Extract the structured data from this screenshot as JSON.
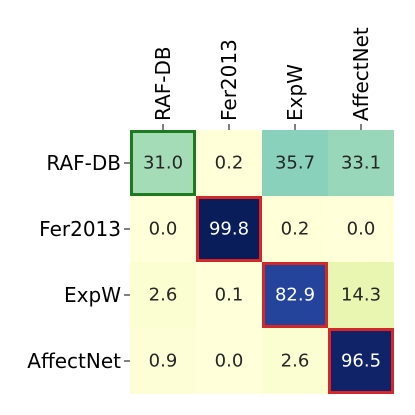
{
  "chart_data": {
    "type": "heatmap",
    "title": "",
    "xlabel": "",
    "ylabel": "",
    "x_categories": [
      "RAF-DB",
      "Fer2013",
      "ExpW",
      "AffectNet"
    ],
    "y_categories": [
      "RAF-DB",
      "Fer2013",
      "ExpW",
      "AffectNet"
    ],
    "x_tick_position": "top",
    "x_tick_rotation": "vertical",
    "values": [
      [
        31.0,
        0.2,
        35.7,
        33.1
      ],
      [
        0.0,
        99.8,
        0.2,
        0.0
      ],
      [
        2.6,
        0.1,
        82.9,
        14.3
      ],
      [
        0.9,
        0.0,
        2.6,
        96.5
      ]
    ],
    "value_range": [
      0,
      100
    ],
    "colormap": "YlGnBu",
    "colorbar": false,
    "grid": false,
    "annotations": "values shown in each cell with one decimal",
    "highlights": [
      {
        "row": 0,
        "col": 0,
        "color": "#1f7a1f"
      },
      {
        "row": 1,
        "col": 1,
        "color": "#d62728"
      },
      {
        "row": 2,
        "col": 2,
        "color": "#d62728"
      },
      {
        "row": 3,
        "col": 3,
        "color": "#d62728"
      }
    ]
  }
}
